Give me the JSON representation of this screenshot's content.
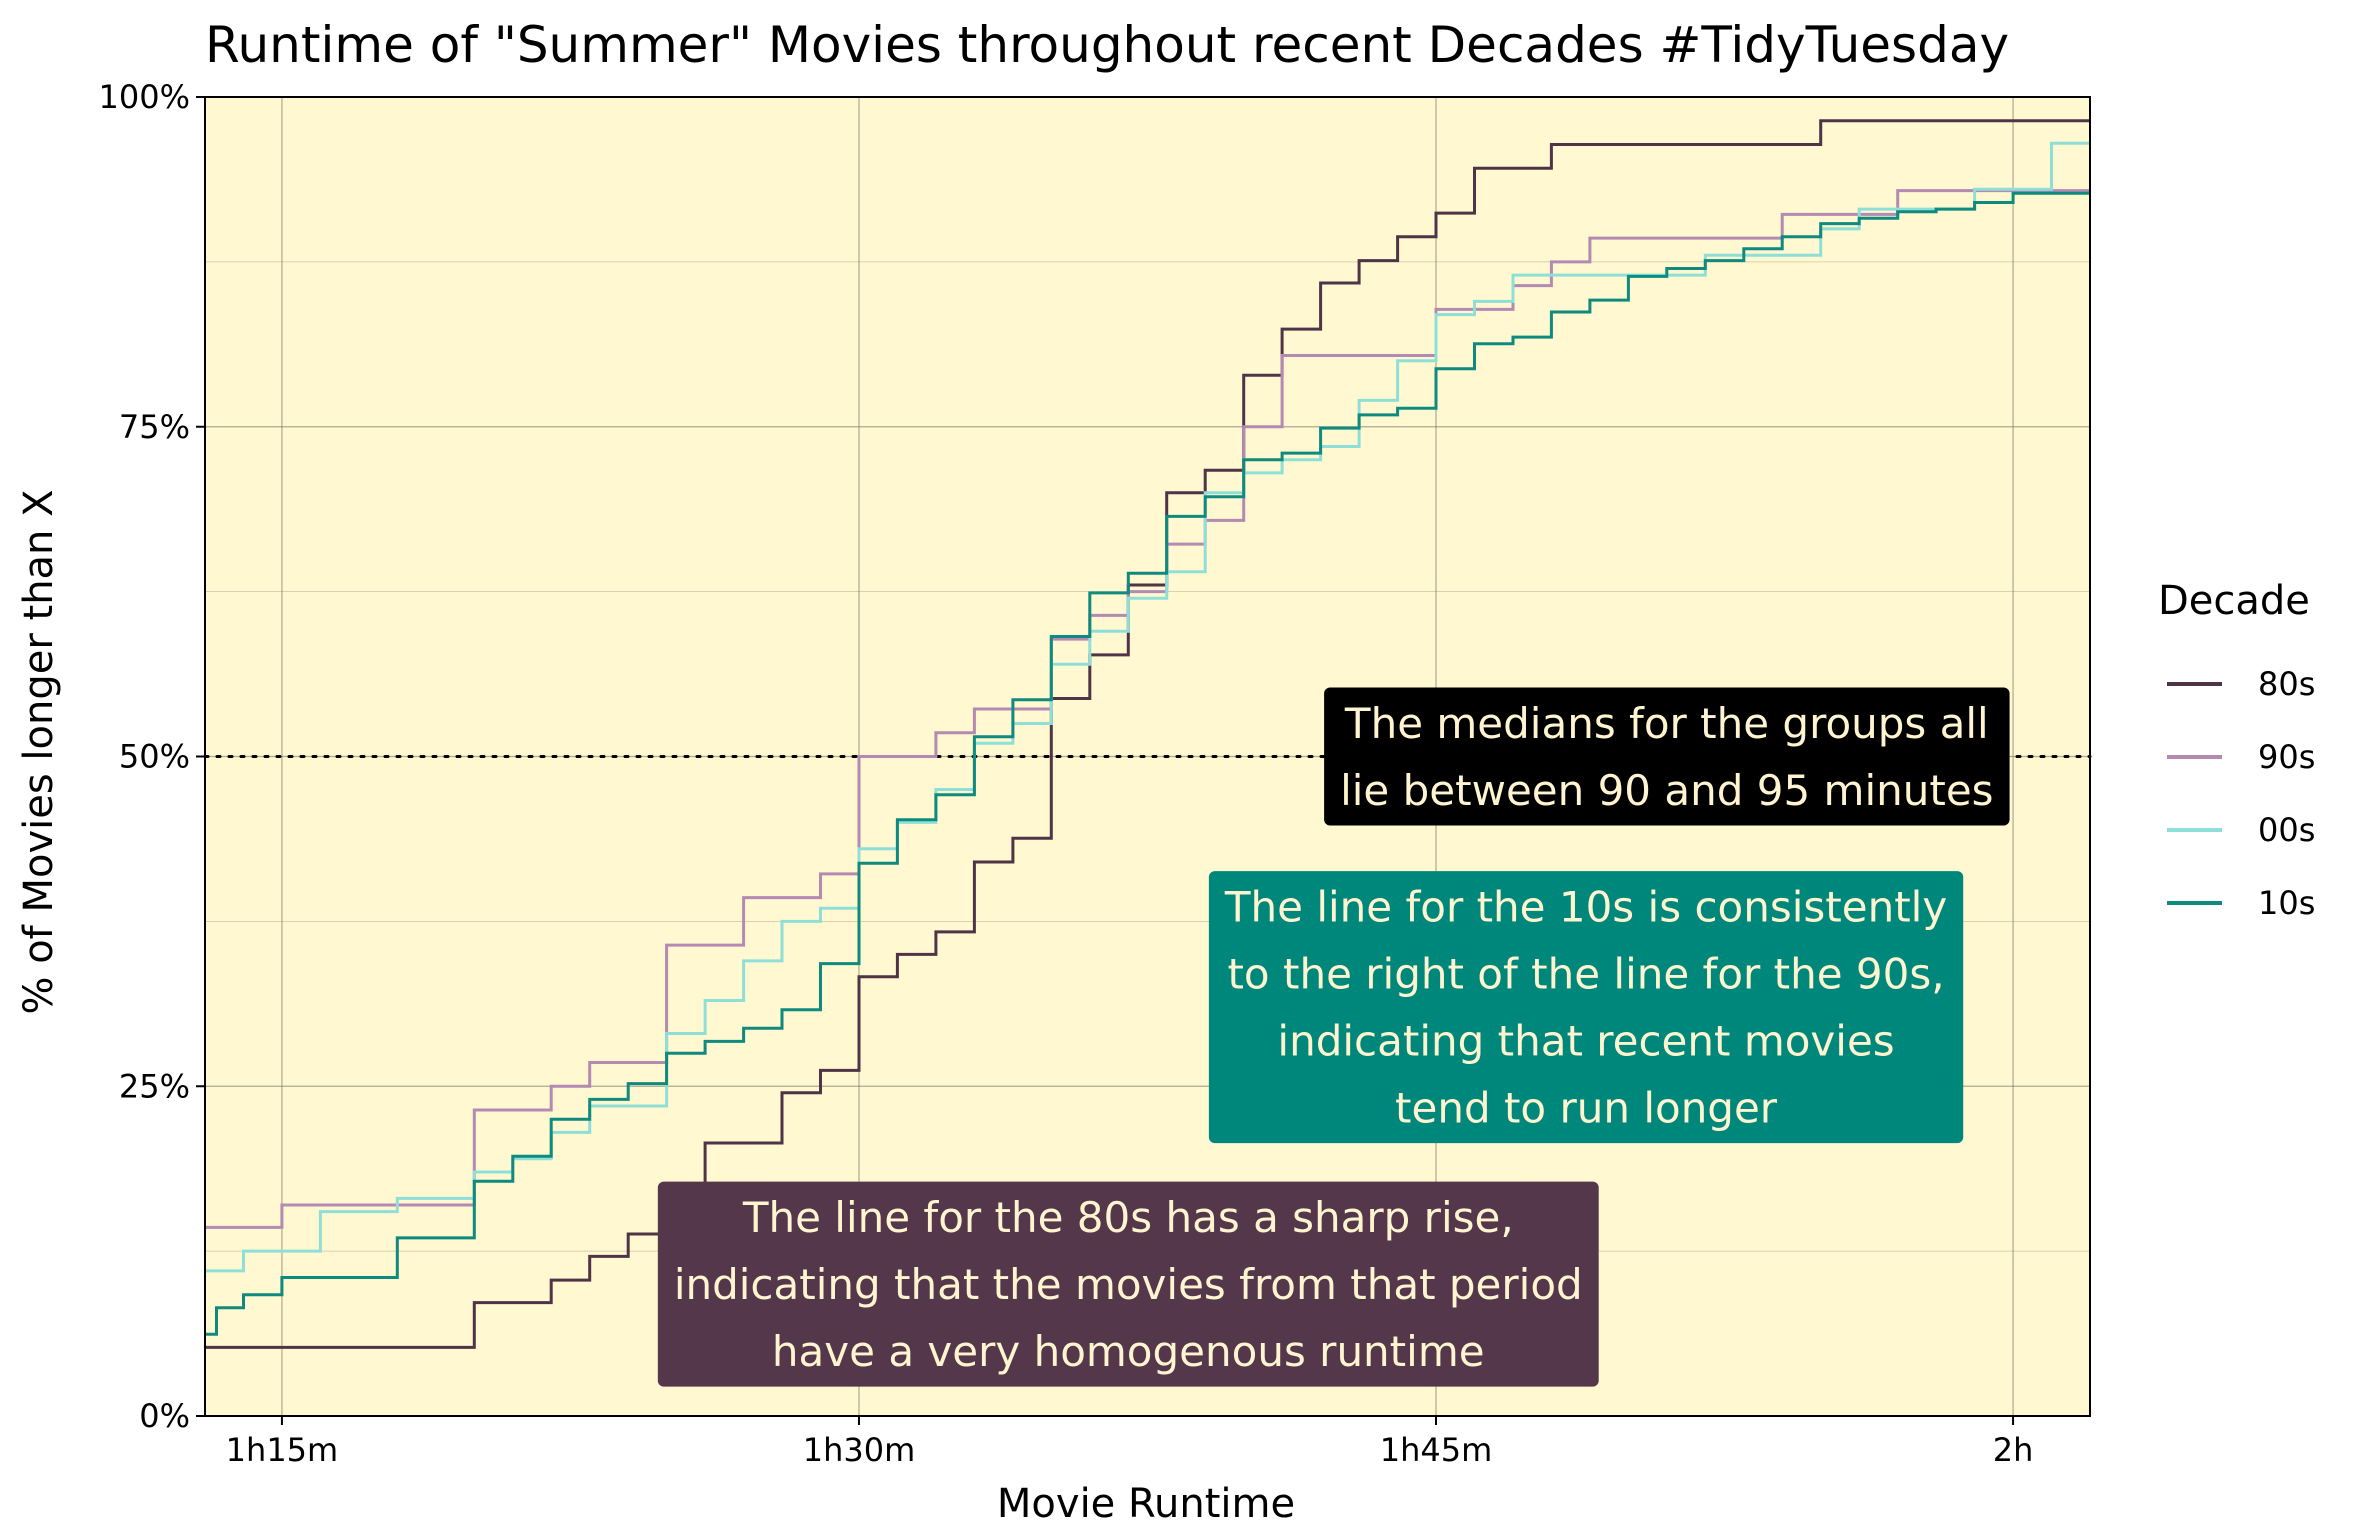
{
  "chart_data": {
    "type": "line",
    "step": true,
    "title": "Runtime of \"Summer\" Movies throughout recent Decades #TidyTuesday",
    "xlabel": "Movie Runtime",
    "ylabel": "% of Movies longer than X",
    "xlim": [
      73,
      122
    ],
    "ylim": [
      0,
      100
    ],
    "x_ticks": [
      {
        "value": 75,
        "label": "1h15m"
      },
      {
        "value": 90,
        "label": "1h30m"
      },
      {
        "value": 105,
        "label": "1h45m"
      },
      {
        "value": 120,
        "label": "2h"
      }
    ],
    "y_ticks": [
      {
        "value": 0,
        "label": "0%"
      },
      {
        "value": 25,
        "label": "25%"
      },
      {
        "value": 50,
        "label": "50%"
      },
      {
        "value": 75,
        "label": "75%"
      },
      {
        "value": 100,
        "label": "100%"
      }
    ],
    "grid": true,
    "background": "#FFF8D0",
    "legend": {
      "title": "Decade",
      "position": "right"
    },
    "median_line": {
      "y": 50,
      "style": "dotted"
    },
    "series": [
      {
        "name": "80s",
        "color": "#4F3447",
        "x": [
          73,
          80,
          82,
          83,
          84,
          85,
          86,
          88,
          89,
          90,
          91,
          92,
          93,
          94,
          95,
          96,
          97,
          98,
          99,
          100,
          101,
          102,
          103,
          104,
          105,
          106,
          108,
          115,
          122
        ],
        "y": [
          5.2,
          8.6,
          10.3,
          12.1,
          13.8,
          17.2,
          20.7,
          24.5,
          26.2,
          33.3,
          35,
          36.7,
          42,
          43.8,
          54.4,
          57.7,
          63,
          70,
          71.7,
          78.9,
          82.4,
          85.9,
          87.6,
          89.4,
          91.2,
          94.6,
          96.4,
          98.2,
          98.2
        ]
      },
      {
        "name": "90s",
        "color": "#B48AB3",
        "x": [
          73,
          75,
          80,
          82,
          83,
          85,
          87,
          89,
          90,
          92,
          93,
          95,
          96,
          97,
          98,
          99,
          100,
          101,
          102,
          105,
          107,
          108,
          109,
          114,
          117,
          122
        ],
        "y": [
          14.3,
          16,
          23.2,
          25,
          26.8,
          35.7,
          39.3,
          41.1,
          50,
          51.8,
          53.6,
          58.9,
          60.7,
          62.5,
          66.1,
          67.9,
          75,
          80.4,
          80.4,
          83.9,
          85.7,
          87.5,
          89.3,
          91.1,
          92.9,
          92.9
        ]
      },
      {
        "name": "00s",
        "color": "#8FDFD9",
        "x": [
          73,
          74,
          76,
          78,
          80,
          81,
          82,
          83,
          85,
          86,
          87,
          88,
          89,
          90,
          91,
          92,
          93,
          94,
          95,
          96,
          97,
          98,
          99,
          100,
          101,
          102,
          103,
          104,
          105,
          106,
          107,
          110,
          112,
          115,
          116,
          119,
          121,
          122
        ],
        "y": [
          11,
          12.5,
          15.5,
          16.5,
          18.5,
          19.5,
          21.5,
          23.5,
          29,
          31.5,
          34.5,
          37.5,
          38.5,
          43,
          45,
          47.5,
          51,
          52.5,
          57,
          59.5,
          62,
          64,
          70,
          71.5,
          72.5,
          73.5,
          77,
          80,
          83.5,
          84.5,
          86.5,
          86.5,
          88,
          90,
          91.5,
          93,
          96.5,
          96.5
        ]
      },
      {
        "name": "10s",
        "color": "#0E8A7E",
        "x": [
          73,
          73.3,
          74,
          75,
          78,
          80,
          81,
          82,
          83,
          84,
          85,
          86,
          87,
          88,
          89,
          90,
          91,
          92,
          93,
          94,
          95,
          96,
          97,
          98,
          99,
          100,
          101,
          102,
          103,
          104,
          105,
          106,
          107,
          108,
          109,
          110,
          111,
          112,
          113,
          114,
          115,
          116,
          117,
          118,
          119,
          120,
          121,
          122
        ],
        "y": [
          6.2,
          8.2,
          9.2,
          10.5,
          13.5,
          17.8,
          19.7,
          22.5,
          24,
          25.2,
          27.5,
          28.4,
          29.4,
          30.8,
          34.3,
          41.9,
          45.2,
          47.1,
          51.5,
          54.3,
          59.1,
          62.4,
          63.9,
          68.2,
          69.7,
          72.5,
          73,
          74.9,
          75.9,
          76.4,
          79.4,
          81.3,
          81.8,
          83.7,
          84.6,
          86.4,
          87,
          87.6,
          88.5,
          89.4,
          90.4,
          90.8,
          91.3,
          91.5,
          92,
          92.7,
          92.7,
          92.7
        ]
      }
    ],
    "annotations": [
      {
        "lines": [
          "The medians for the groups all",
          "lie between 90 and 95 minutes"
        ],
        "bg": "#000000",
        "color": "#FFF4D0",
        "x": 111,
        "y": 50
      },
      {
        "lines": [
          "The line for the 10s is consistently",
          " to the right of the line for the 90s,",
          "indicating that recent movies",
          "tend to run longer"
        ],
        "bg": "#00877B",
        "color": "#FFF4D0",
        "x": 108.9,
        "y": 31
      },
      {
        "lines": [
          "The line for the 80s has a sharp rise,",
          "indicating that the movies from that period",
          "have a very homogenous runtime"
        ],
        "bg": "#54374B",
        "color": "#FFF4D0",
        "x": 97,
        "y": 10
      }
    ]
  }
}
